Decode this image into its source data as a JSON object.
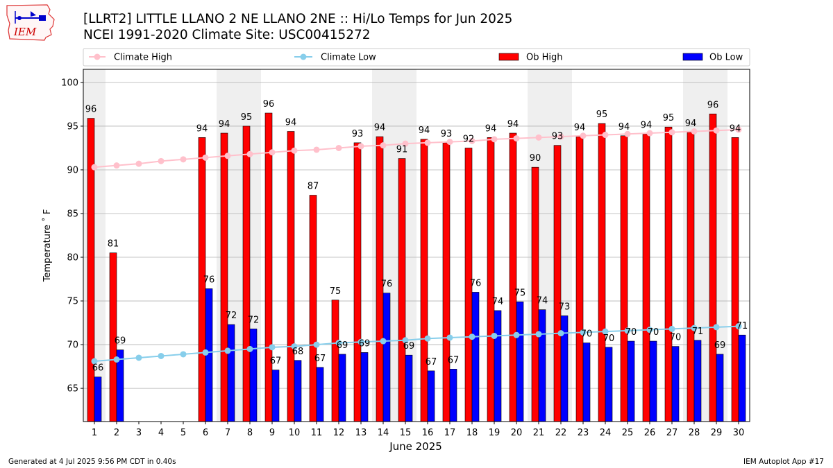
{
  "title_line1": "[LLRT2] LITTLE LLANO 2 NE LLANO 2NE :: Hi/Lo Temps for Jun 2025",
  "title_line2": "NCEI 1991-2020 Climate Site: USC00415272",
  "logo_text": "IEM",
  "footer_left": "Generated at 4 Jul 2025 9:56 PM CDT in 0.40s",
  "footer_right": "IEM Autoplot App #17",
  "chart_data": {
    "type": "bar",
    "xlabel": "June 2025",
    "ylabel": "Temperature ˚ F",
    "ylim": [
      61.2,
      101.5
    ],
    "yticks": [
      65,
      70,
      75,
      80,
      85,
      90,
      95,
      100
    ],
    "grid": true,
    "legend_placement": "top, above plot",
    "categories": [
      "1",
      "2",
      "3",
      "4",
      "5",
      "6",
      "7",
      "8",
      "9",
      "10",
      "11",
      "12",
      "13",
      "14",
      "15",
      "16",
      "17",
      "18",
      "19",
      "20",
      "21",
      "22",
      "23",
      "24",
      "25",
      "26",
      "27",
      "28",
      "29",
      "30"
    ],
    "weekend_shading_days": [
      [
        1,
        1
      ],
      [
        7,
        8
      ],
      [
        14,
        15
      ],
      [
        21,
        22
      ],
      [
        28,
        29
      ]
    ],
    "series": [
      {
        "name": "Climate High",
        "kind": "line",
        "color": "#ffc0cb",
        "values": [
          90.3,
          90.5,
          90.7,
          91.0,
          91.2,
          91.4,
          91.6,
          91.8,
          92.0,
          92.2,
          92.3,
          92.5,
          92.7,
          92.8,
          93.0,
          93.1,
          93.2,
          93.3,
          93.5,
          93.6,
          93.7,
          93.8,
          93.9,
          94.0,
          94.1,
          94.2,
          94.3,
          94.4,
          94.5,
          94.6
        ]
      },
      {
        "name": "Climate Low",
        "kind": "line",
        "color": "#87ceeb",
        "values": [
          68.1,
          68.3,
          68.5,
          68.7,
          68.9,
          69.1,
          69.3,
          69.5,
          69.7,
          69.8,
          70.0,
          70.2,
          70.3,
          70.4,
          70.5,
          70.7,
          70.8,
          70.9,
          71.0,
          71.1,
          71.2,
          71.3,
          71.4,
          71.5,
          71.6,
          71.7,
          71.8,
          71.9,
          72.0,
          72.1
        ]
      },
      {
        "name": "Ob High",
        "kind": "bar",
        "color": "#ff0000",
        "values": [
          96,
          81,
          null,
          null,
          null,
          94,
          94,
          95,
          96,
          94,
          87,
          75,
          93,
          94,
          91,
          94,
          93,
          92,
          94,
          94,
          90,
          93,
          94,
          95,
          94,
          94,
          95,
          94,
          96,
          94
        ],
        "bar_values": [
          95.9,
          80.5,
          null,
          null,
          null,
          93.7,
          94.2,
          95.0,
          96.5,
          94.4,
          87.1,
          75.1,
          93.1,
          93.8,
          91.3,
          93.5,
          93.1,
          92.5,
          93.7,
          94.2,
          90.3,
          92.8,
          93.8,
          95.3,
          93.9,
          94.1,
          94.9,
          94.3,
          96.4,
          93.7
        ]
      },
      {
        "name": "Ob Low",
        "kind": "bar",
        "color": "#0000ff",
        "values": [
          66,
          69,
          null,
          null,
          null,
          76,
          72,
          72,
          67,
          68,
          67,
          69,
          69,
          76,
          69,
          67,
          67,
          76,
          74,
          75,
          74,
          73,
          70,
          70,
          70,
          70,
          70,
          71,
          69,
          71
        ],
        "bar_values": [
          66.3,
          69.4,
          null,
          null,
          null,
          76.4,
          72.3,
          71.8,
          67.1,
          68.2,
          67.4,
          68.9,
          69.1,
          75.9,
          68.8,
          67.0,
          67.2,
          76.0,
          73.9,
          74.9,
          74.0,
          73.3,
          70.2,
          69.7,
          70.4,
          70.4,
          69.8,
          70.5,
          68.9,
          71.1
        ]
      }
    ]
  }
}
